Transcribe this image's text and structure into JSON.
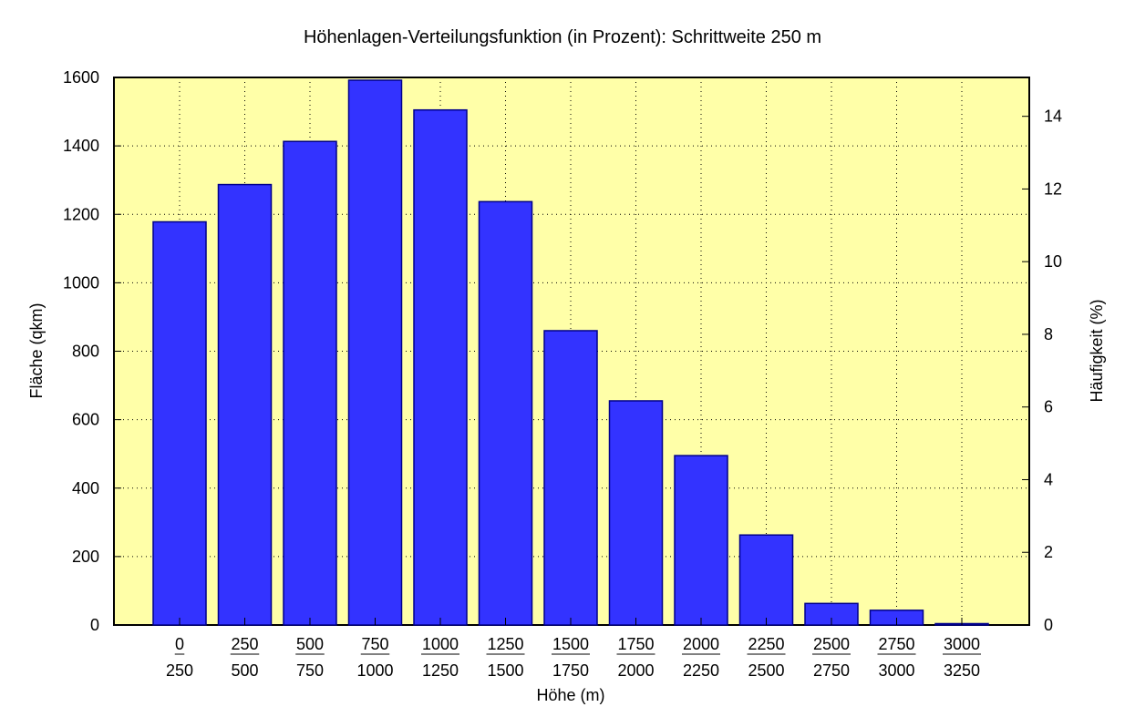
{
  "chart_data": {
    "type": "bar",
    "title": "Höhenlagen-Verteilungsfunktion (in Prozent): Schrittweite 250 m",
    "xlabel": "Höhe (m)",
    "ylabel": "Fläche (qkm)",
    "y2label": "Häufigkeit (%)",
    "categories": [
      {
        "lower": "0",
        "upper": "250"
      },
      {
        "lower": "250",
        "upper": "500"
      },
      {
        "lower": "500",
        "upper": "750"
      },
      {
        "lower": "750",
        "upper": "1000"
      },
      {
        "lower": "1000",
        "upper": "1250"
      },
      {
        "lower": "1250",
        "upper": "1500"
      },
      {
        "lower": "1500",
        "upper": "1750"
      },
      {
        "lower": "1750",
        "upper": "2000"
      },
      {
        "lower": "2000",
        "upper": "2250"
      },
      {
        "lower": "2250",
        "upper": "2500"
      },
      {
        "lower": "2500",
        "upper": "2750"
      },
      {
        "lower": "2750",
        "upper": "3000"
      },
      {
        "lower": "3000",
        "upper": "3250"
      }
    ],
    "values": [
      1178,
      1287,
      1413,
      1592,
      1505,
      1237,
      860,
      655,
      495,
      263,
      63,
      43,
      4
    ],
    "ylim": [
      0,
      1600
    ],
    "yticks": [
      0,
      200,
      400,
      600,
      800,
      1000,
      1200,
      1400,
      1600
    ],
    "y2lim": [
      0,
      15.07
    ],
    "y2ticks": [
      0,
      2,
      4,
      6,
      8,
      10,
      12,
      14
    ],
    "grid": true,
    "colors": {
      "bar_fill": "#3333ff",
      "bar_edge": "#00008b",
      "plot_background": "#ffffa8"
    }
  }
}
